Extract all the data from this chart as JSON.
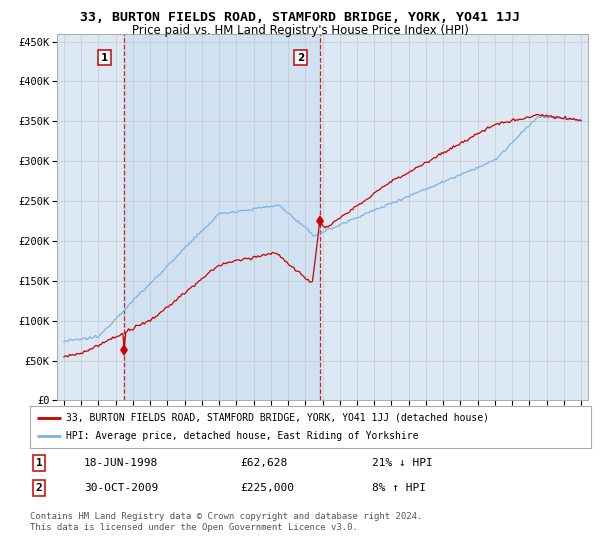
{
  "title": "33, BURTON FIELDS ROAD, STAMFORD BRIDGE, YORK, YO41 1JJ",
  "subtitle": "Price paid vs. HM Land Registry's House Price Index (HPI)",
  "ylim": [
    0,
    460000
  ],
  "yticks": [
    0,
    50000,
    100000,
    150000,
    200000,
    250000,
    300000,
    350000,
    400000,
    450000
  ],
  "ytick_labels": [
    "£0",
    "£50K",
    "£100K",
    "£150K",
    "£200K",
    "£250K",
    "£300K",
    "£350K",
    "£400K",
    "£450K"
  ],
  "bg_color": "#dce9f5",
  "grid_color": "#c8c8c8",
  "line_red_color": "#cc0000",
  "line_blue_color": "#7ab4e0",
  "sale1_x": 1998.46,
  "sale1_y": 62628,
  "sale2_x": 2009.83,
  "sale2_y": 225000,
  "legend_label_red": "33, BURTON FIELDS ROAD, STAMFORD BRIDGE, YORK, YO41 1JJ (detached house)",
  "legend_label_blue": "HPI: Average price, detached house, East Riding of Yorkshire",
  "table_row1": [
    "1",
    "18-JUN-1998",
    "£62,628",
    "21% ↓ HPI"
  ],
  "table_row2": [
    "2",
    "30-OCT-2009",
    "£225,000",
    "8% ↑ HPI"
  ],
  "footer": "Contains HM Land Registry data © Crown copyright and database right 2024.\nThis data is licensed under the Open Government Licence v3.0.",
  "xlim_start": 1994.6,
  "xlim_end": 2025.4,
  "years_start": 1995,
  "years_end": 2025
}
